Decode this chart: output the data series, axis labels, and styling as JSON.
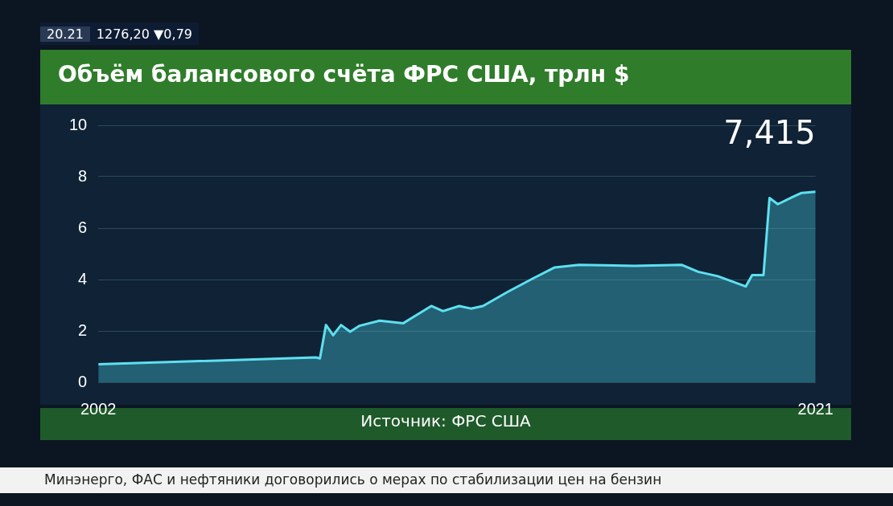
{
  "chart_data": {
    "type": "area",
    "title": "Объём балансового счёта ФРС США, трлн $",
    "x": [
      2002.0,
      2007.76,
      2007.87,
      2008.03,
      2008.22,
      2008.43,
      2008.67,
      2008.92,
      2009.45,
      2010.08,
      2010.82,
      2011.13,
      2011.56,
      2011.87,
      2012.19,
      2012.82,
      2013.46,
      2014.09,
      2014.73,
      2016.2,
      2017.46,
      2017.89,
      2018.41,
      2019.15,
      2019.32,
      2019.62,
      2019.78,
      2020.0,
      2020.42,
      2020.63,
      2021.0
    ],
    "series": [
      {
        "color": "#5ee0f0",
        "values": [
          0.7,
          0.97,
          0.93,
          2.23,
          1.83,
          2.23,
          1.97,
          2.2,
          2.4,
          2.3,
          2.97,
          2.77,
          2.97,
          2.87,
          2.97,
          3.5,
          4.0,
          4.47,
          4.57,
          4.53,
          4.57,
          4.3,
          4.13,
          3.73,
          4.17,
          4.17,
          7.17,
          6.93,
          7.23,
          7.37,
          7.415
        ]
      }
    ],
    "xlim": [
      2002,
      2021
    ],
    "xticks": [
      2002,
      2021
    ],
    "ylim": [
      0,
      10
    ],
    "yticks": [
      0,
      2,
      4,
      6,
      8,
      10
    ],
    "grid": "y",
    "marker": "none",
    "line_style": "solid",
    "legend": false,
    "annotations": [
      "Источник: ФРС США",
      {
        "text": "7,415",
        "x": 2021,
        "y": 7.415
      },
      "20.21",
      "1276,20 ▼0,79",
      "Минэнерго, ФАС и нефтяники договорились о мерах по стабилизации цен на бензин"
    ]
  }
}
